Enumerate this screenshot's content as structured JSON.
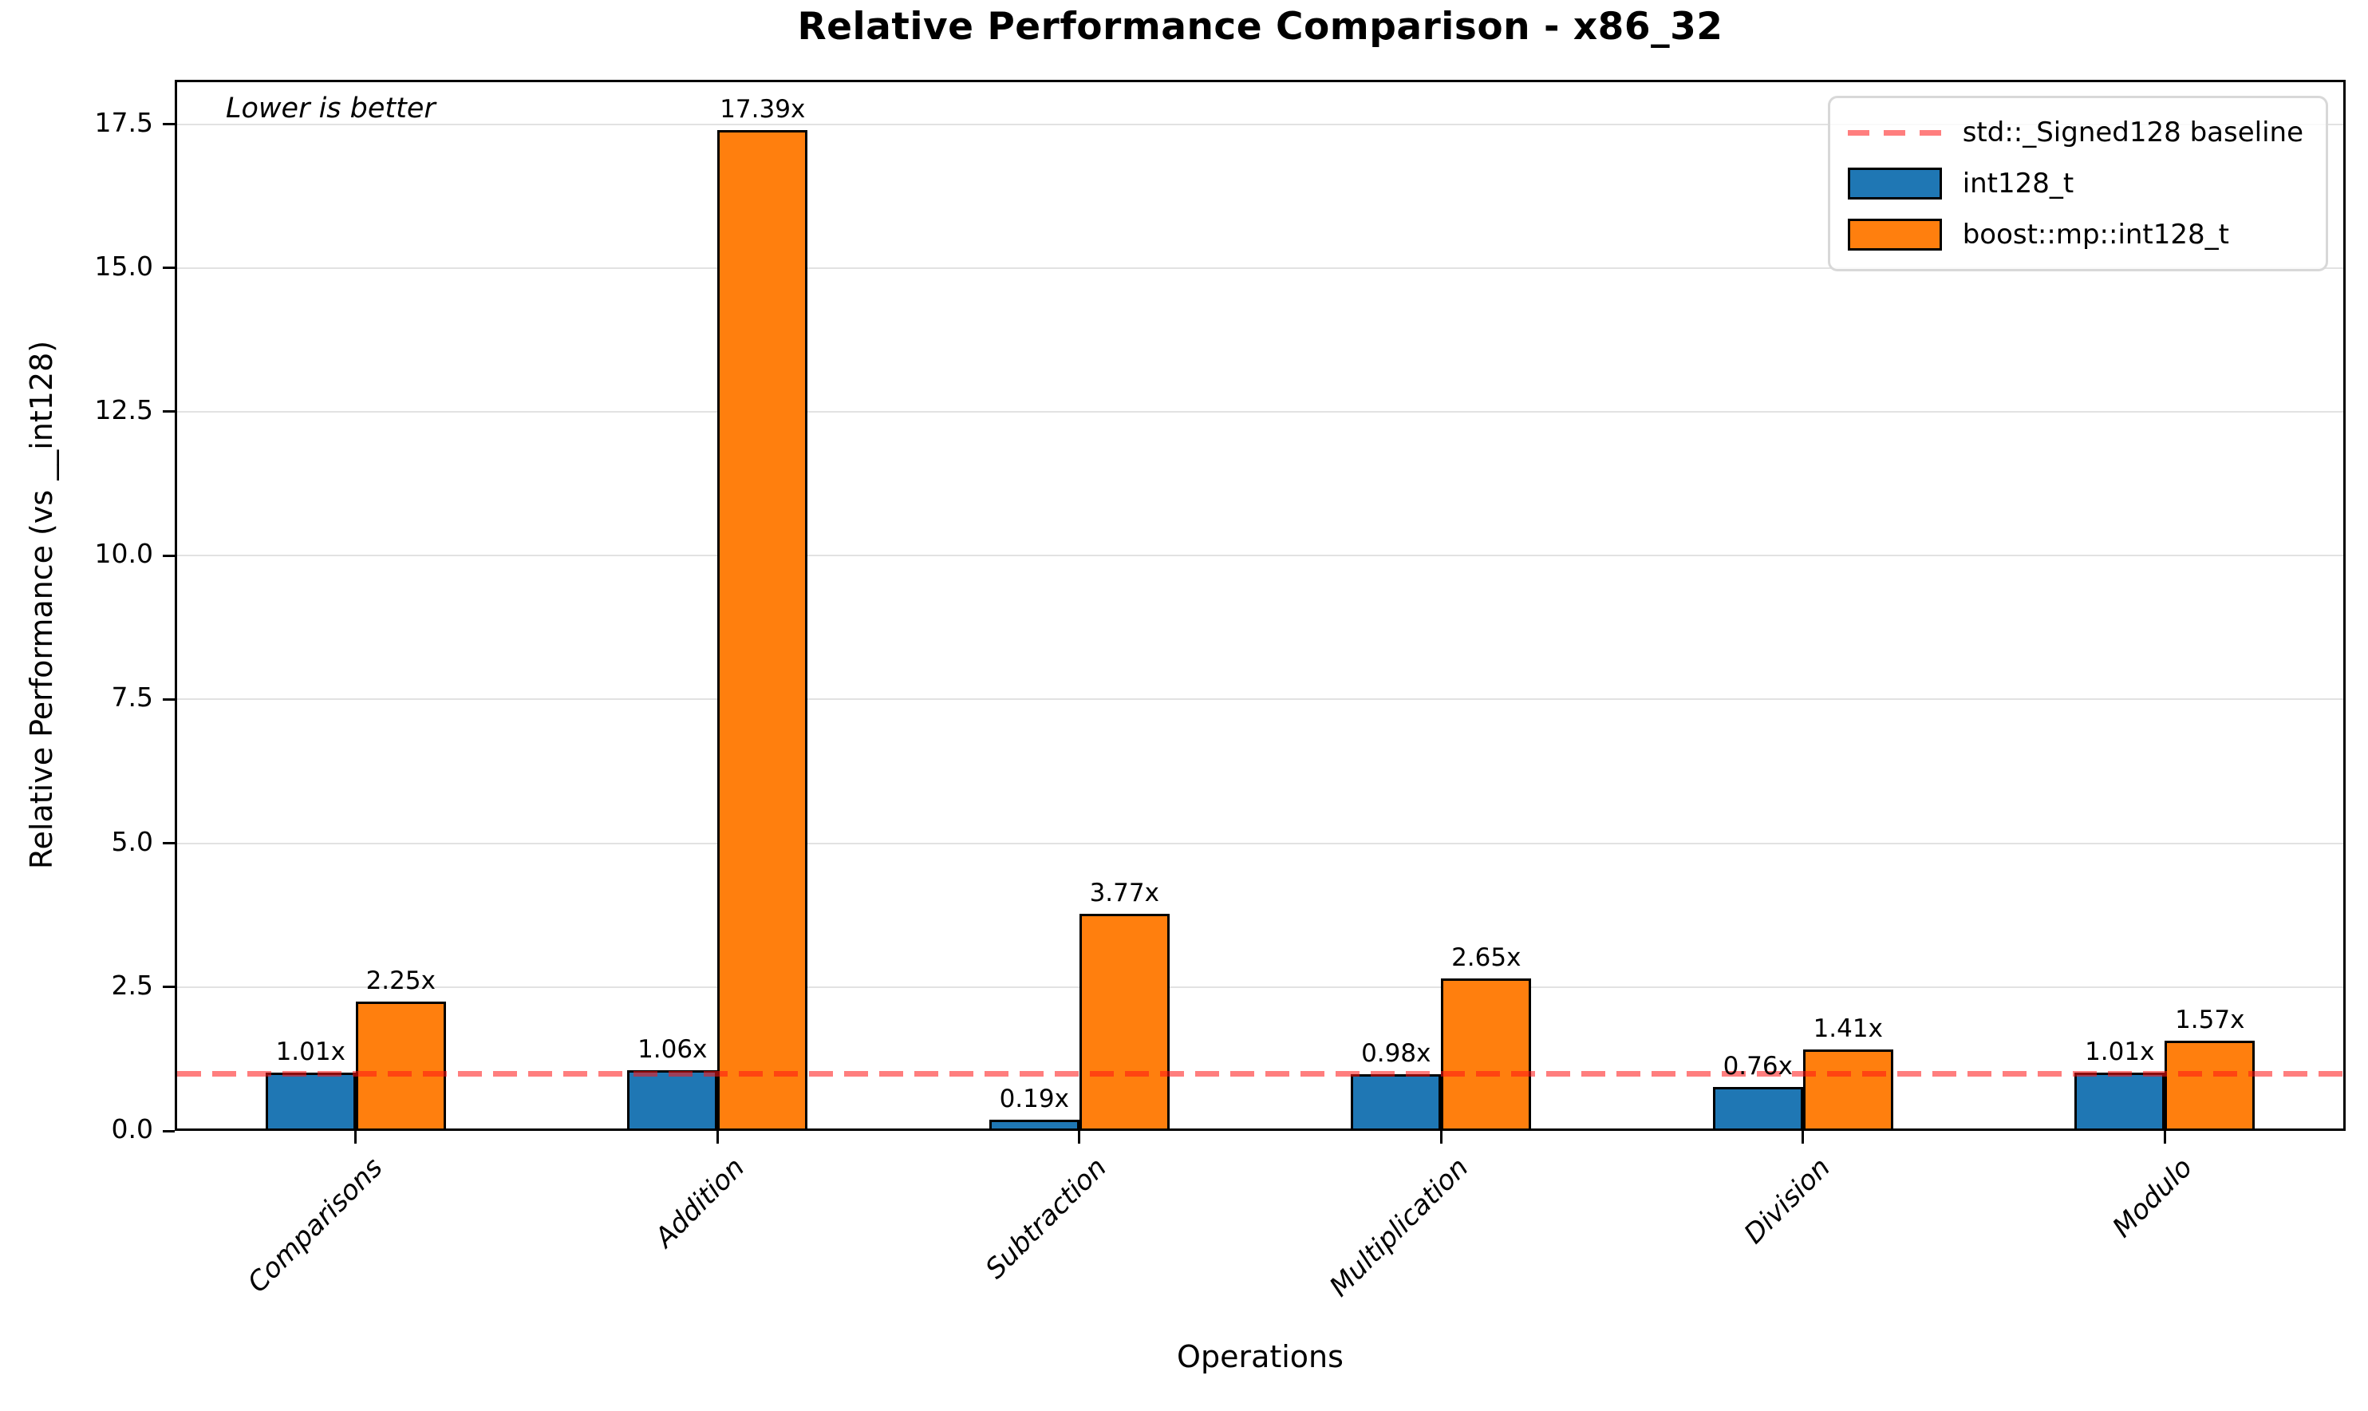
{
  "chart_data": {
    "type": "bar",
    "title": "Relative Performance Comparison - x86_32",
    "annotation": "Lower is better",
    "xlabel": "Operations",
    "ylabel": "Relative Performance (vs __int128)",
    "categories": [
      "Comparisons",
      "Addition",
      "Subtraction",
      "Multiplication",
      "Division",
      "Modulo"
    ],
    "series": [
      {
        "name": "int128_t",
        "color": "#1f77b4",
        "values": [
          1.01,
          1.06,
          0.19,
          0.98,
          0.76,
          1.01
        ]
      },
      {
        "name": "boost::mp::int128_t",
        "color": "#ff7f0e",
        "values": [
          2.25,
          17.39,
          3.77,
          2.65,
          1.41,
          1.57
        ]
      }
    ],
    "value_label_suffix": "x",
    "baseline": {
      "label": "std::_Signed128 baseline",
      "value": 1.0,
      "color": "rgba(255,20,20,0.55)"
    },
    "yticks": [
      0.0,
      2.5,
      5.0,
      7.5,
      10.0,
      12.5,
      15.0,
      17.5
    ],
    "ylim": [
      0,
      18.27
    ],
    "grid": "horizontal",
    "legend_position": "upper right",
    "bar_edge_color": "#000000"
  }
}
